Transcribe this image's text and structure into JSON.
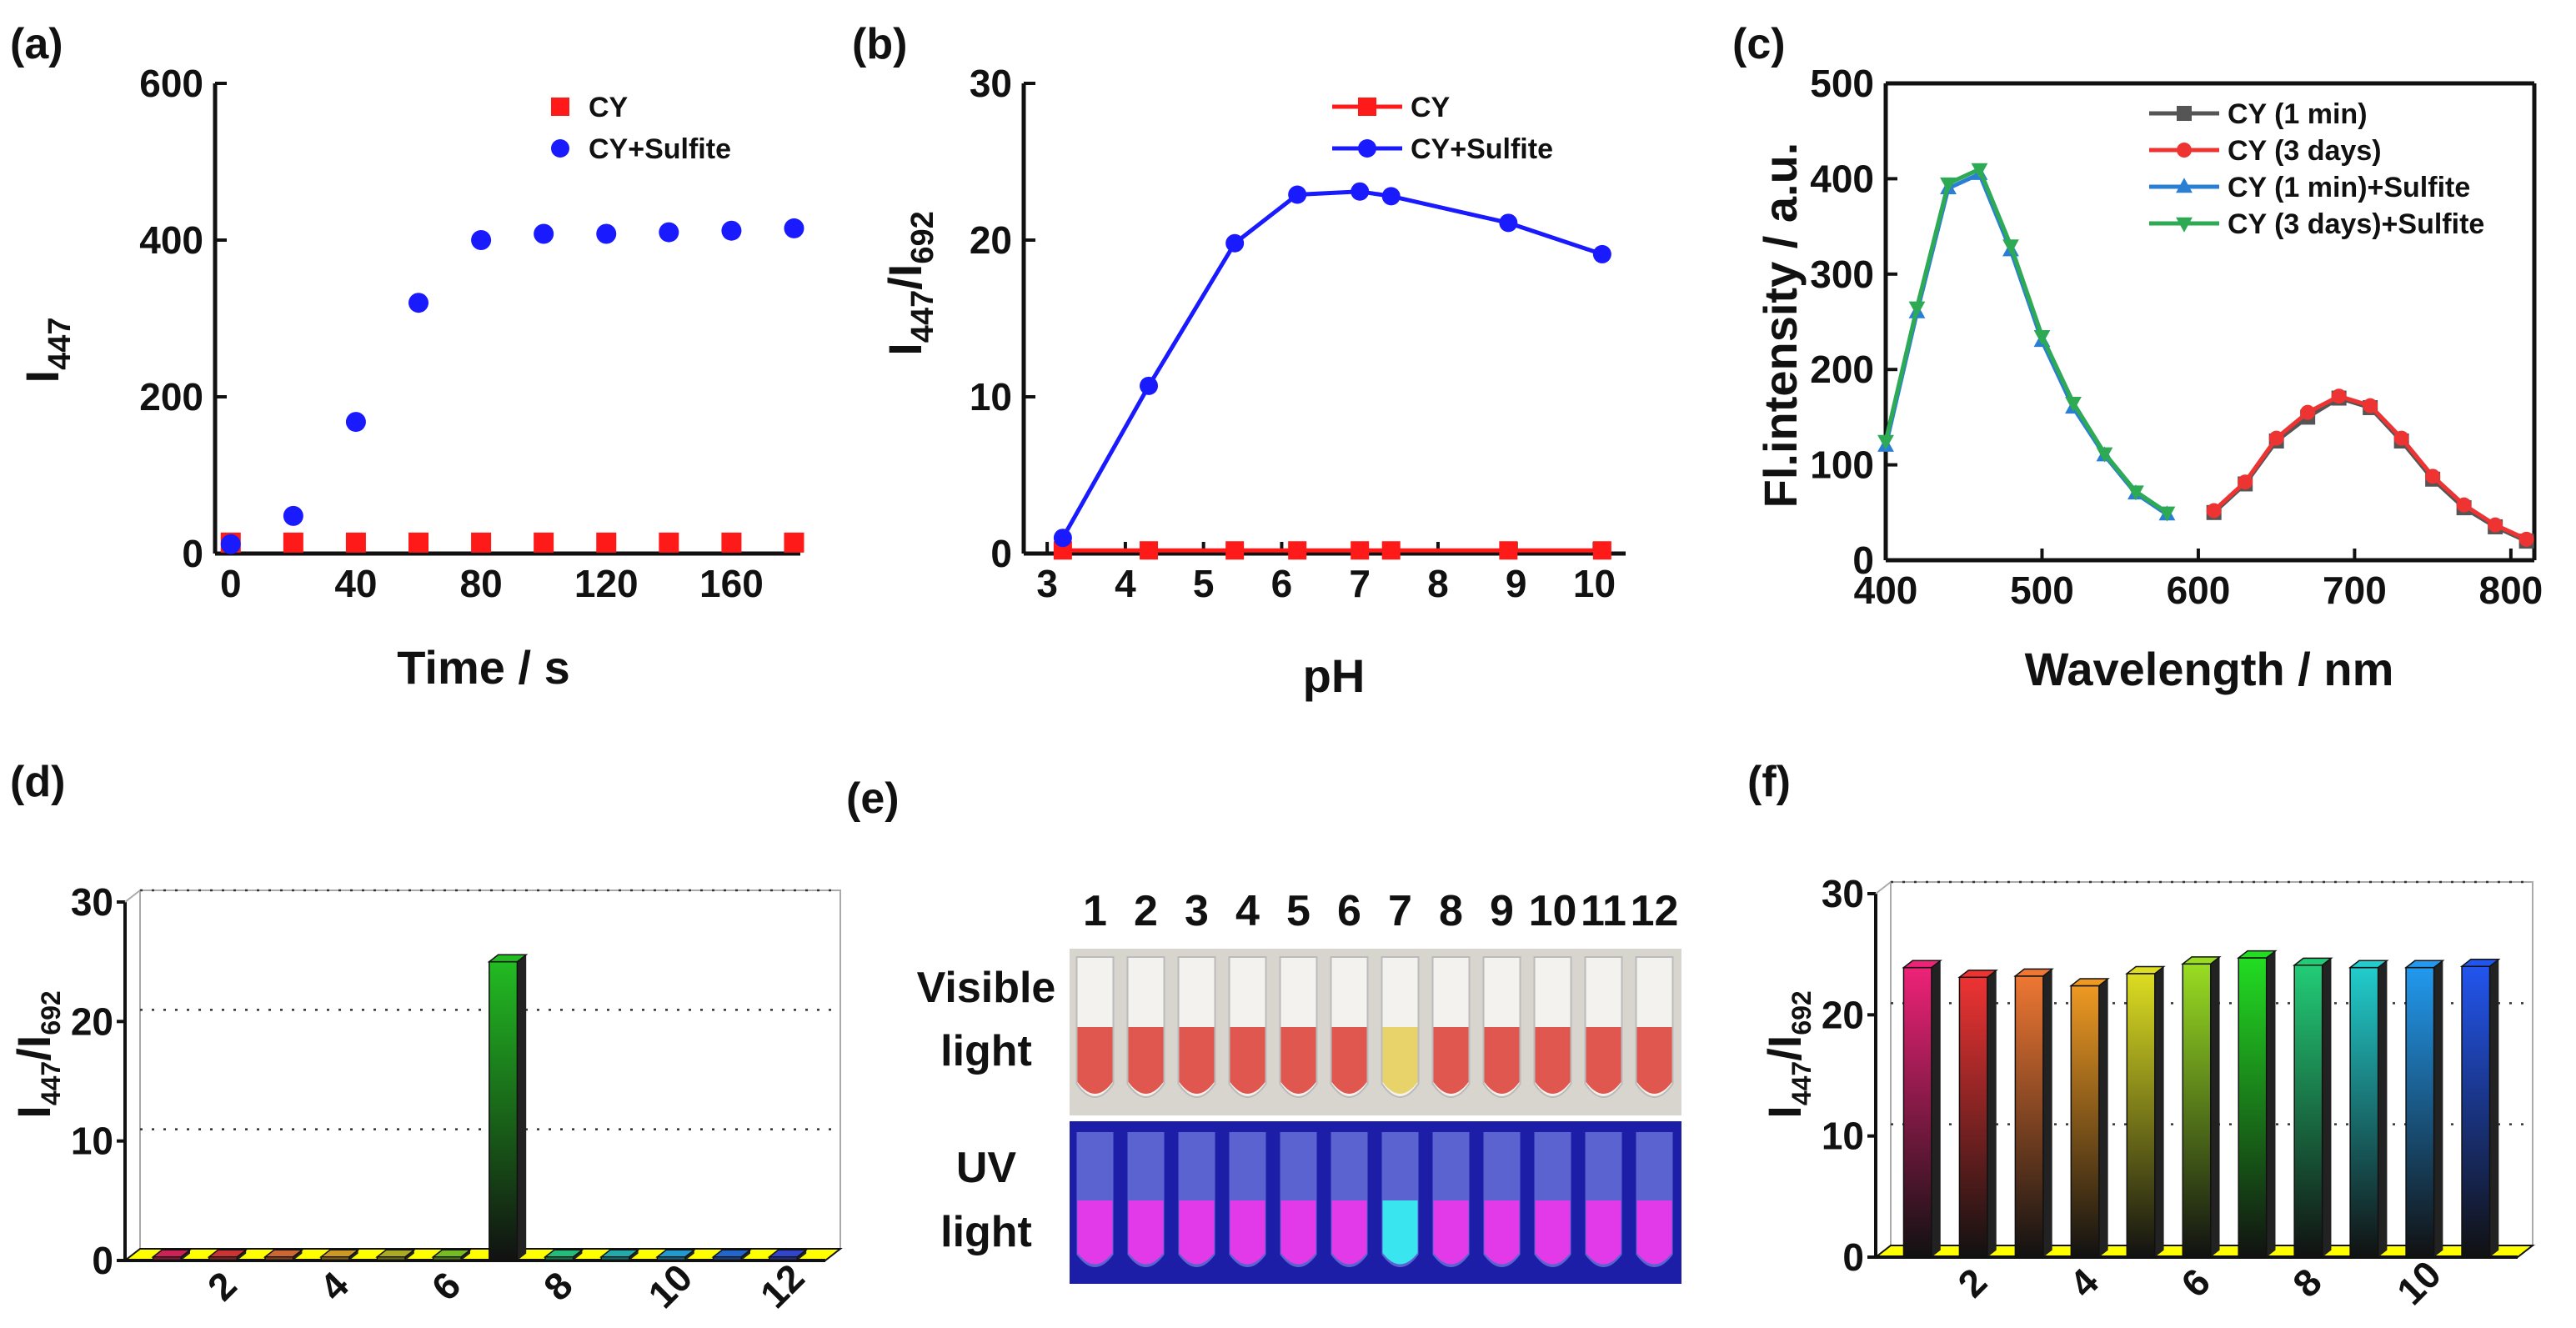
{
  "chart_data": [
    {
      "panel": "(a)",
      "type": "scatter",
      "xlabel": "Time / s",
      "ylabel_main": "I",
      "ylabel_sub": "447",
      "xlim": [
        -5,
        182
      ],
      "ylim": [
        0,
        600
      ],
      "xticks": [
        0,
        40,
        80,
        120,
        160
      ],
      "yticks": [
        0,
        200,
        400,
        600
      ],
      "series": [
        {
          "name": "CY",
          "color": "#ff1a1a",
          "marker": "square",
          "x": [
            0,
            20,
            40,
            60,
            80,
            100,
            120,
            140,
            160,
            180
          ],
          "y": [
            14,
            14,
            14,
            14,
            14,
            14,
            14,
            14,
            14,
            14
          ]
        },
        {
          "name": "CY+Sulfite",
          "color": "#1a1aff",
          "marker": "circle",
          "x": [
            0,
            20,
            40,
            60,
            80,
            100,
            120,
            140,
            160,
            180
          ],
          "y": [
            12,
            48,
            168,
            320,
            400,
            408,
            408,
            410,
            412,
            415
          ]
        }
      ]
    },
    {
      "panel": "(b)",
      "type": "line",
      "xlabel": "pH",
      "ylabel_main": "I",
      "ylabel_sub1": "447",
      "ylabel_sep": "/I",
      "ylabel_sub2": "692",
      "xlim": [
        2.7,
        10.4
      ],
      "ylim": [
        0,
        30
      ],
      "xticks": [
        3,
        4,
        5,
        6,
        7,
        8,
        9,
        10
      ],
      "yticks": [
        0,
        10,
        20,
        30
      ],
      "series": [
        {
          "name": "CY",
          "color": "#ff1a1a",
          "marker": "square",
          "x": [
            3.2,
            4.3,
            5.4,
            6.2,
            7.0,
            7.4,
            8.9,
            10.1
          ],
          "y": [
            0.2,
            0.2,
            0.2,
            0.2,
            0.2,
            0.2,
            0.2,
            0.2
          ]
        },
        {
          "name": "CY+Sulfite",
          "color": "#1a1aff",
          "marker": "circle",
          "x": [
            3.2,
            4.3,
            5.4,
            6.2,
            7.0,
            7.4,
            8.9,
            10.1
          ],
          "y": [
            1.0,
            10.7,
            19.8,
            22.9,
            23.1,
            22.8,
            21.1,
            19.1
          ]
        }
      ]
    },
    {
      "panel": "(c)",
      "type": "line",
      "xlabel": "Wavelength / nm",
      "ylabel": "Fl.intensity / a.u.",
      "xlim": [
        400,
        815
      ],
      "ylim": [
        0,
        500
      ],
      "xticks": [
        400,
        500,
        600,
        700,
        800
      ],
      "yticks": [
        0,
        100,
        200,
        300,
        400,
        500
      ],
      "series": [
        {
          "name": "CY (1 min)",
          "color": "#555555",
          "marker": "square",
          "x": [
            610,
            630,
            650,
            670,
            690,
            710,
            730,
            750,
            770,
            790,
            810
          ],
          "y": [
            50,
            80,
            125,
            150,
            170,
            160,
            125,
            85,
            55,
            35,
            20
          ]
        },
        {
          "name": "CY (3 days)",
          "color": "#ee3333",
          "marker": "circle",
          "x": [
            610,
            630,
            650,
            670,
            690,
            710,
            730,
            750,
            770,
            790,
            810
          ],
          "y": [
            52,
            82,
            128,
            155,
            172,
            162,
            128,
            88,
            58,
            37,
            22
          ]
        },
        {
          "name": "CY (1 min)+Sulfite",
          "color": "#2a7fd4",
          "marker": "triangle-up",
          "x": [
            400,
            420,
            440,
            460,
            480,
            500,
            520,
            540,
            560,
            580
          ],
          "y": [
            120,
            260,
            390,
            405,
            325,
            230,
            160,
            110,
            70,
            48
          ]
        },
        {
          "name": "CY (3 days)+Sulfite",
          "color": "#2eaa55",
          "marker": "triangle-down",
          "x": [
            400,
            420,
            440,
            460,
            480,
            500,
            520,
            540,
            560,
            580
          ],
          "y": [
            125,
            265,
            395,
            410,
            330,
            235,
            165,
            112,
            72,
            50
          ]
        }
      ]
    },
    {
      "panel": "(d)",
      "type": "bar",
      "ylabel_main": "I",
      "ylabel_sub1": "447",
      "ylabel_sep": "/I",
      "ylabel_sub2": "692",
      "ylim": [
        0,
        30
      ],
      "yticks": [
        0,
        10,
        20,
        30
      ],
      "categories": [
        "1",
        "2",
        "3",
        "4",
        "5",
        "6",
        "7",
        "8",
        "9",
        "10",
        "11",
        "12"
      ],
      "xtick_labels": [
        "2",
        "4",
        "6",
        "8",
        "10",
        "12"
      ],
      "values": [
        0.3,
        0.3,
        0.3,
        0.3,
        0.3,
        0.3,
        25.0,
        0.3,
        0.3,
        0.3,
        0.3,
        0.3
      ],
      "colors": [
        "#cc2255",
        "#cc3333",
        "#cc6633",
        "#cc9922",
        "#aaaa22",
        "#77bb22",
        "#22bb22",
        "#22bb77",
        "#22aaaa",
        "#2299cc",
        "#2266cc",
        "#3344cc"
      ]
    },
    {
      "panel": "(f)",
      "type": "bar",
      "ylabel_main": "I",
      "ylabel_sub1": "447",
      "ylabel_sep": "/I",
      "ylabel_sub2": "692",
      "ylim": [
        0,
        30
      ],
      "yticks": [
        0,
        10,
        20,
        30
      ],
      "categories": [
        "1",
        "2",
        "3",
        "4",
        "5",
        "6",
        "7",
        "8",
        "9",
        "10",
        "11"
      ],
      "xtick_labels": [
        "2",
        "4",
        "6",
        "8",
        "10"
      ],
      "values": [
        23.9,
        23.1,
        23.2,
        22.4,
        23.4,
        24.2,
        24.7,
        24.1,
        23.9,
        23.9,
        24.0
      ],
      "colors": [
        "#ee2277",
        "#ee3333",
        "#ee7733",
        "#ee9922",
        "#dddd22",
        "#99dd22",
        "#22dd22",
        "#22cc77",
        "#22cccc",
        "#2299ee",
        "#2255ee"
      ]
    }
  ],
  "panel_e": {
    "label": "(e)",
    "vial_numbers": [
      "1",
      "2",
      "3",
      "4",
      "5",
      "6",
      "7",
      "8",
      "9",
      "10",
      "11",
      "12"
    ],
    "row_labels": [
      [
        "Visible",
        "light"
      ],
      [
        "UV",
        "light"
      ]
    ],
    "visible_colors": [
      "#e0574f",
      "#e0574f",
      "#e0574f",
      "#e0574f",
      "#e0574f",
      "#e0574f",
      "#e8d26a",
      "#e0574f",
      "#e0574f",
      "#e0574f",
      "#e0574f",
      "#e0574f"
    ],
    "uv_colors": [
      "#e23ae8",
      "#e23ae8",
      "#e23ae8",
      "#e23ae8",
      "#e23ae8",
      "#e23ae8",
      "#39e6f0",
      "#e23ae8",
      "#e23ae8",
      "#e23ae8",
      "#e23ae8",
      "#e23ae8"
    ]
  }
}
